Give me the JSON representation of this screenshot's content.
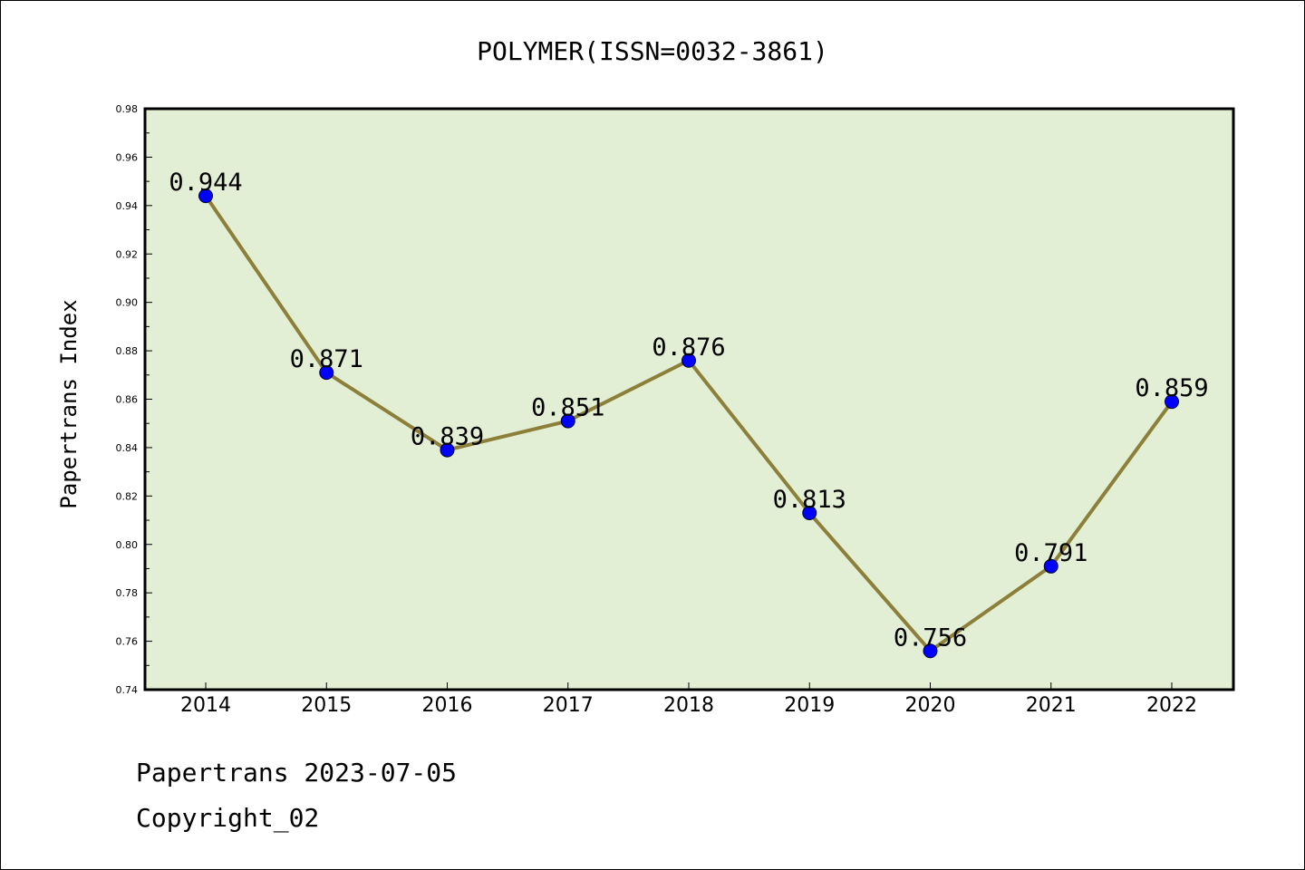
{
  "chart_data": {
    "type": "line",
    "title": "POLYMER(ISSN=0032-3861)",
    "xlabel": "",
    "ylabel": "Papertrans Index",
    "categories": [
      "2014",
      "2015",
      "2016",
      "2017",
      "2018",
      "2019",
      "2020",
      "2021",
      "2022"
    ],
    "series": [
      {
        "values": [
          0.944,
          0.871,
          0.839,
          0.851,
          0.876,
          0.813,
          0.756,
          0.791,
          0.859
        ],
        "labels": [
          "0.944",
          "0.871",
          "0.839",
          "0.851",
          "0.876",
          "0.813",
          "0.756",
          "0.791",
          "0.859"
        ]
      }
    ],
    "ylim": [
      0.74,
      0.98
    ],
    "yticks": [
      "0.74",
      "0.76",
      "0.78",
      "0.80",
      "0.82",
      "0.84",
      "0.86",
      "0.88",
      "0.90",
      "0.92",
      "0.94",
      "0.96",
      "0.98"
    ],
    "grid": false,
    "legend": "none",
    "colors": {
      "plot_background": "#e2efd5",
      "line": "#8c7f3a",
      "marker": "#0000ff"
    }
  },
  "footer": {
    "date_line": "Papertrans 2023-07-05",
    "copyright": "Copyright_02"
  }
}
